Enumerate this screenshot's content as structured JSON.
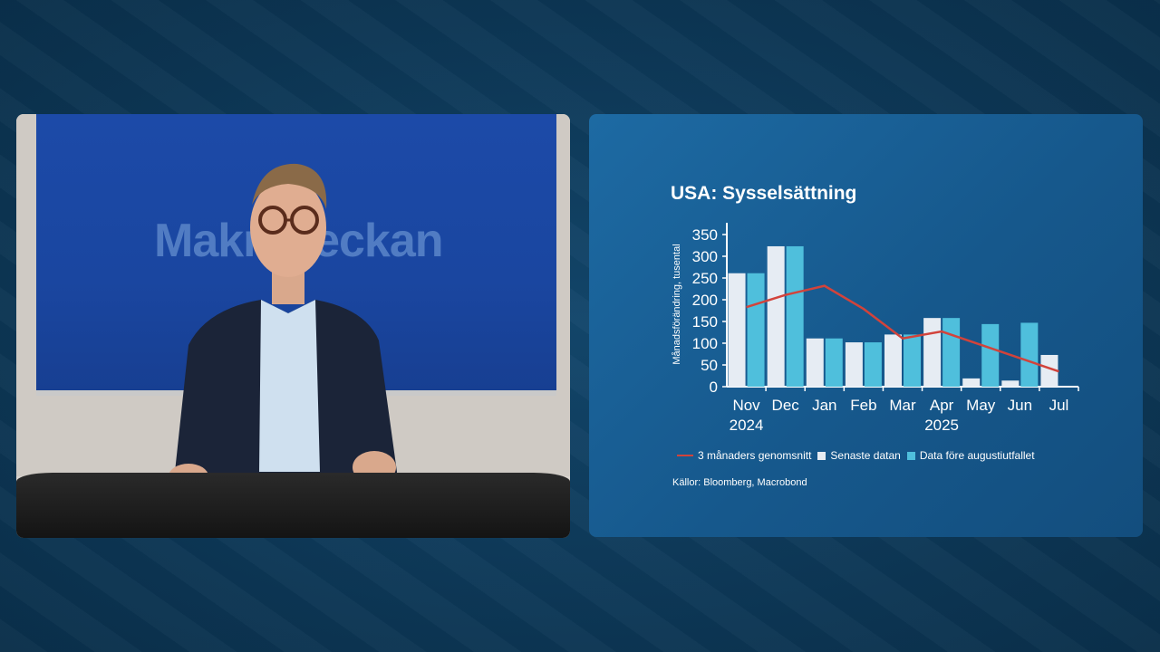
{
  "video": {
    "screen_text": "Makroveckan"
  },
  "chart_data": {
    "type": "bar",
    "title": "USA: Sysselsättning",
    "ylabel": "Månadsförändring, tusental",
    "xlabel": "",
    "ylim": [
      0,
      350
    ],
    "yticks": [
      0,
      50,
      100,
      150,
      200,
      250,
      300,
      350
    ],
    "categories": [
      "Nov",
      "Dec",
      "Jan",
      "Feb",
      "Mar",
      "Apr",
      "May",
      "Jun",
      "Jul"
    ],
    "year_labels": [
      {
        "category": "Nov",
        "label": "2024"
      },
      {
        "category": "Apr",
        "label": "2025"
      }
    ],
    "series": [
      {
        "name": "Senaste datan",
        "type": "bar",
        "color": "#e6ecf3",
        "values": [
          261,
          323,
          111,
          102,
          120,
          158,
          19,
          14,
          73
        ]
      },
      {
        "name": "Data före augustiutfallet",
        "type": "bar",
        "color": "#4fbfdc",
        "values": [
          261,
          323,
          111,
          102,
          120,
          158,
          144,
          147,
          null
        ]
      },
      {
        "name": "3 månaders genomsnitt",
        "type": "line",
        "color": "#d2433b",
        "values": [
          183,
          211,
          232,
          179,
          111,
          127,
          null,
          null,
          35
        ]
      }
    ],
    "legend_position": "bottom",
    "grid": false,
    "source": "Källor: Bloomberg, Macrobond"
  }
}
